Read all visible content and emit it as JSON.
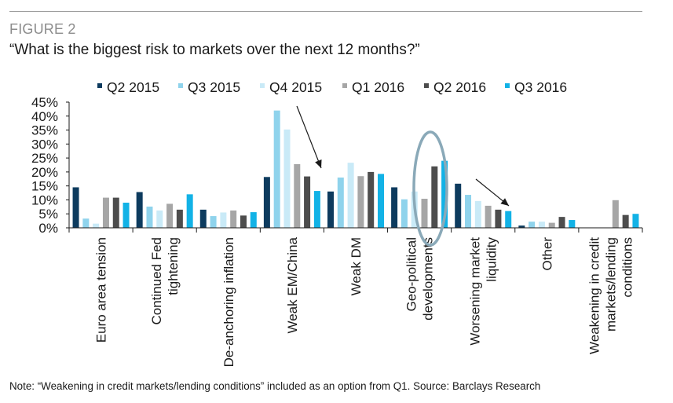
{
  "figure_label": "FIGURE 2",
  "title": "“What is the biggest risk to markets over the next 12 months?”",
  "note": "Note: “Weakening in credit markets/lending conditions” included as an option from Q1. Source: Barclays Research",
  "colors": {
    "Q2 2015": "#0d3b5e",
    "Q3 2015": "#8fd3ec",
    "Q4 2015": "#c9eaf7",
    "Q1 2016": "#a6a6a6",
    "Q2 2016": "#4d4d4d",
    "Q3 2016": "#12b2e6",
    "highlight_ellipse": "#8aa9b8"
  },
  "chart_data": {
    "type": "bar",
    "categories": [
      [
        "Euro area tension"
      ],
      [
        "Continued Fed",
        "tightening"
      ],
      [
        "De-anchoring inflation"
      ],
      [
        "Weak EM/China"
      ],
      [
        "Weak DM"
      ],
      [
        "Geo-political",
        "developments"
      ],
      [
        "Worsening market",
        "liquidity"
      ],
      [
        "Other"
      ],
      [
        "Weakening in credit",
        "markets/lending",
        "conditions"
      ]
    ],
    "series": [
      {
        "name": "Q2 2015",
        "values": [
          14.5,
          12.8,
          6.5,
          18.2,
          13.0,
          14.5,
          15.8,
          0.8,
          0
        ]
      },
      {
        "name": "Q3 2015",
        "values": [
          3.3,
          7.6,
          4.2,
          42.0,
          18.0,
          10.2,
          11.8,
          2.2,
          0
        ]
      },
      {
        "name": "Q4 2015",
        "values": [
          1.5,
          6.2,
          5.5,
          35.2,
          23.3,
          13.0,
          9.6,
          2.2,
          0
        ]
      },
      {
        "name": "Q1 2016",
        "values": [
          10.8,
          8.6,
          6.2,
          22.8,
          18.5,
          10.4,
          7.9,
          1.8,
          9.9
        ]
      },
      {
        "name": "Q2 2016",
        "values": [
          10.8,
          6.5,
          4.4,
          18.4,
          20.0,
          22.0,
          6.5,
          3.9,
          4.6
        ]
      },
      {
        "name": "Q3 2016",
        "values": [
          9.0,
          12.0,
          5.6,
          13.2,
          19.3,
          24.0,
          6.0,
          2.8,
          5.0
        ]
      }
    ],
    "y_tick_labels": [
      "0%",
      "5%",
      "10%",
      "15%",
      "20%",
      "25%",
      "30%",
      "35%",
      "40%",
      "45%"
    ],
    "ylim": [
      0,
      45
    ],
    "ystep": 5,
    "legend_position": "top",
    "xlabel": "",
    "ylabel": "",
    "annotations": [
      "arrow pointing at Weak EM/China",
      "ellipse around Geo-political developments",
      "arrow pointing at Worsening market liquidity"
    ]
  }
}
